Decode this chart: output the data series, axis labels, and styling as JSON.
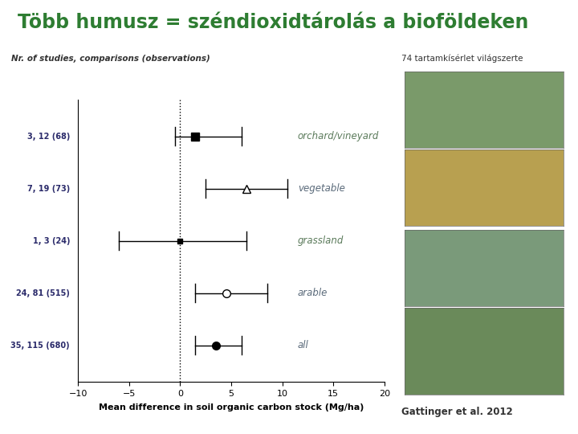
{
  "title": "Több humusz = széndioxidtárolás a bioföldeken",
  "title_color": "#2e7d32",
  "subtitle": "74 tartamkísérlet világszerte",
  "subtitle_color": "#333333",
  "credit": "Gattinger et al. 2012",
  "xlabel": "Mean difference in soil organic carbon stock (Mg/ha)",
  "ylabel_left": "Nr. of studies, comparisons (observations)",
  "xlim": [
    -10,
    20
  ],
  "xticks": [
    -10,
    -5,
    0,
    5,
    10,
    15,
    20
  ],
  "categories": [
    "orchard/vineyard",
    "vegetable",
    "grassland",
    "arable",
    "all"
  ],
  "y_positions": [
    5,
    4,
    3,
    2,
    1
  ],
  "left_labels": [
    "3, 12 (68)",
    "7, 19 (73)",
    "1, 3 (24)",
    "24, 81 (515)",
    "35, 115 (680)"
  ],
  "centers": [
    1.5,
    6.5,
    0.0,
    4.5,
    3.5
  ],
  "ci_low": [
    -0.5,
    2.5,
    -6.0,
    1.5,
    1.5
  ],
  "ci_high": [
    6.0,
    10.5,
    6.5,
    8.5,
    6.0
  ],
  "markers": [
    "s",
    "^",
    "s",
    "o",
    "o"
  ],
  "marker_filled": [
    true,
    false,
    true,
    false,
    true
  ],
  "marker_sizes": [
    7,
    7,
    4,
    7,
    7
  ],
  "label_colors": {
    "orchard/vineyard": "#5a7a5a",
    "vegetable": "#5a6a7a",
    "grassland": "#5a7a5a",
    "arable": "#5a6a7a",
    "all": "#5a6a7a"
  },
  "image_colors": [
    "#7a9a6a",
    "#b8a050",
    "#7a9a7a",
    "#6a8a5a"
  ],
  "plot_bg": "#ffffff",
  "fig_bg": "#ffffff"
}
